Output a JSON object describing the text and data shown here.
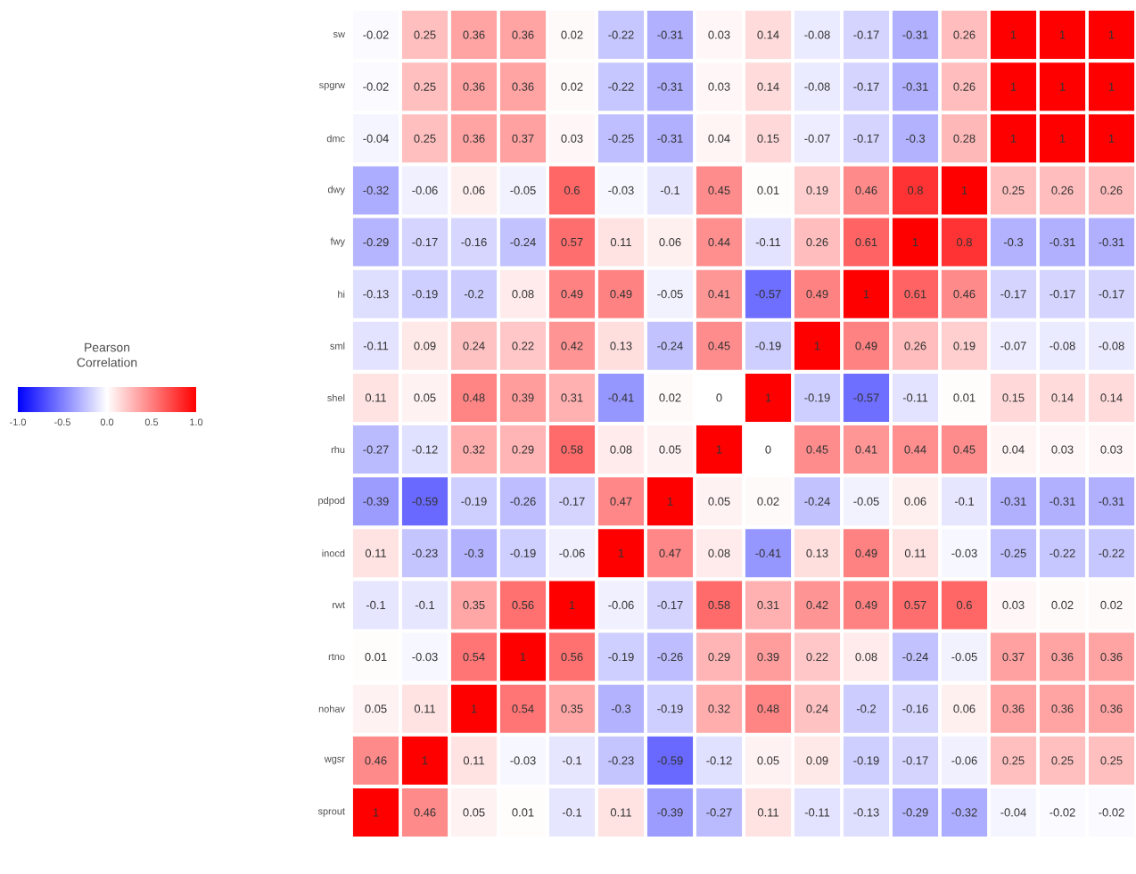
{
  "chart_data": {
    "type": "heatmap",
    "clabel": "Pearson Correlation",
    "categories": [
      null,
      null,
      null,
      null,
      null,
      null,
      null,
      null,
      null,
      null,
      null,
      null,
      null,
      null,
      null,
      null
    ],
    "y_categories": [
      "sw",
      "spgrw",
      "dmc",
      "dwy",
      "fwy",
      "hi",
      "sml",
      "shel",
      "rhu",
      "pdpod",
      "inocd",
      "rwt",
      "rtno",
      "nohav",
      "wgsr",
      "sprout"
    ],
    "cells": [
      [
        -0.02,
        0.25,
        0.36,
        0.36,
        0.02,
        -0.22,
        -0.31,
        0.03,
        0.14,
        -0.08,
        -0.17,
        -0.31,
        0.26,
        1,
        1,
        1
      ],
      [
        -0.02,
        0.25,
        0.36,
        0.36,
        0.02,
        -0.22,
        -0.31,
        0.03,
        0.14,
        -0.08,
        -0.17,
        -0.31,
        0.26,
        1,
        1,
        1
      ],
      [
        -0.04,
        0.25,
        0.36,
        0.37,
        0.03,
        -0.25,
        -0.31,
        0.04,
        0.15,
        -0.07,
        -0.17,
        -0.3,
        0.28,
        1,
        1,
        1
      ],
      [
        -0.32,
        -0.06,
        0.06,
        -0.05,
        0.6,
        -0.03,
        -0.1,
        0.45,
        0.01,
        0.19,
        0.46,
        0.8,
        1,
        0.25,
        0.26,
        0.26
      ],
      [
        -0.29,
        -0.17,
        -0.16,
        -0.24,
        0.57,
        0.11,
        0.06,
        0.44,
        -0.11,
        0.26,
        0.61,
        1,
        0.8,
        -0.3,
        -0.31,
        -0.31
      ],
      [
        -0.13,
        -0.19,
        -0.2,
        0.08,
        0.49,
        0.49,
        -0.05,
        0.41,
        -0.57,
        0.49,
        1,
        0.61,
        0.46,
        -0.17,
        -0.17,
        -0.17
      ],
      [
        -0.11,
        0.09,
        0.24,
        0.22,
        0.42,
        0.13,
        -0.24,
        0.45,
        -0.19,
        1,
        0.49,
        0.26,
        0.19,
        -0.07,
        -0.08,
        -0.08
      ],
      [
        0.11,
        0.05,
        0.48,
        0.39,
        0.31,
        -0.41,
        0.02,
        0,
        1,
        -0.19,
        -0.57,
        -0.11,
        0.01,
        0.15,
        0.14,
        0.14
      ],
      [
        -0.27,
        -0.12,
        0.32,
        0.29,
        0.58,
        0.08,
        0.05,
        1,
        0,
        0.45,
        0.41,
        0.44,
        0.45,
        0.04,
        0.03,
        0.03
      ],
      [
        -0.39,
        -0.59,
        -0.19,
        -0.26,
        -0.17,
        0.47,
        1,
        0.05,
        0.02,
        -0.24,
        -0.05,
        0.06,
        -0.1,
        -0.31,
        -0.31,
        -0.31
      ],
      [
        0.11,
        -0.23,
        -0.3,
        -0.19,
        -0.06,
        1,
        0.47,
        0.08,
        -0.41,
        0.13,
        0.49,
        0.11,
        -0.03,
        -0.25,
        -0.22,
        -0.22
      ],
      [
        -0.1,
        -0.1,
        0.35,
        0.56,
        1,
        -0.06,
        -0.17,
        0.58,
        0.31,
        0.42,
        0.49,
        0.57,
        0.6,
        0.03,
        0.02,
        0.02
      ],
      [
        0.01,
        -0.03,
        0.54,
        1,
        0.56,
        -0.19,
        -0.26,
        0.29,
        0.39,
        0.22,
        0.08,
        -0.24,
        -0.05,
        0.37,
        0.36,
        0.36
      ],
      [
        0.05,
        0.11,
        1,
        0.54,
        0.35,
        -0.3,
        -0.19,
        0.32,
        0.48,
        0.24,
        -0.2,
        -0.16,
        0.06,
        0.36,
        0.36,
        0.36
      ],
      [
        0.46,
        1,
        0.11,
        -0.03,
        -0.1,
        -0.23,
        -0.59,
        -0.12,
        0.05,
        0.09,
        -0.19,
        -0.17,
        -0.06,
        0.25,
        0.25,
        0.25
      ],
      [
        1,
        0.46,
        0.05,
        0.01,
        -0.1,
        0.11,
        -0.39,
        -0.27,
        0.11,
        -0.11,
        -0.13,
        -0.29,
        -0.32,
        -0.04,
        -0.02,
        -0.02
      ]
    ],
    "clim": [
      -1,
      1
    ],
    "cticks": [
      {
        "value": -1,
        "label": "-1.0"
      },
      {
        "value": -0.5,
        "label": "-0.5"
      },
      {
        "value": 0,
        "label": "0.0"
      },
      {
        "value": 0.5,
        "label": "0.5"
      },
      {
        "value": 1,
        "label": "1.0"
      }
    ],
    "data_labels": true
  }
}
